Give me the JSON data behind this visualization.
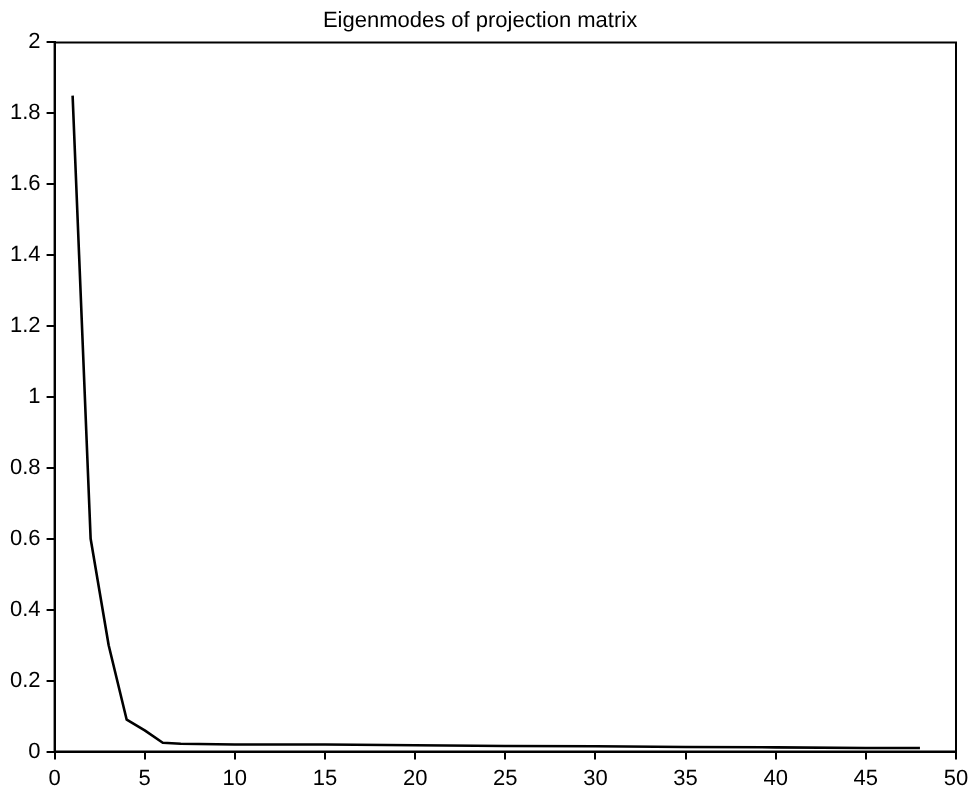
{
  "chart_data": {
    "type": "line",
    "title": "Eigenmodes of projection matrix",
    "x": [
      1,
      2,
      3,
      4,
      5,
      6,
      7,
      10,
      15,
      20,
      25,
      30,
      35,
      40,
      45,
      48
    ],
    "series": [
      {
        "color": "#000000",
        "values": [
          1.85,
          0.6,
          0.3,
          0.09,
          0.06,
          0.025,
          0.022,
          0.02,
          0.02,
          0.018,
          0.016,
          0.015,
          0.013,
          0.012,
          0.01,
          0.01
        ]
      }
    ],
    "xlim": [
      0,
      50
    ],
    "xticks": [
      0,
      5,
      10,
      15,
      20,
      25,
      30,
      35,
      40,
      45,
      50
    ],
    "ylim": [
      0,
      2
    ],
    "yticks": [
      0,
      0.2,
      0.4,
      0.6,
      0.8,
      1,
      1.2,
      1.4,
      1.6,
      1.8,
      2
    ],
    "grid": false,
    "legend": false,
    "marker": "none",
    "line_style": "solid"
  }
}
